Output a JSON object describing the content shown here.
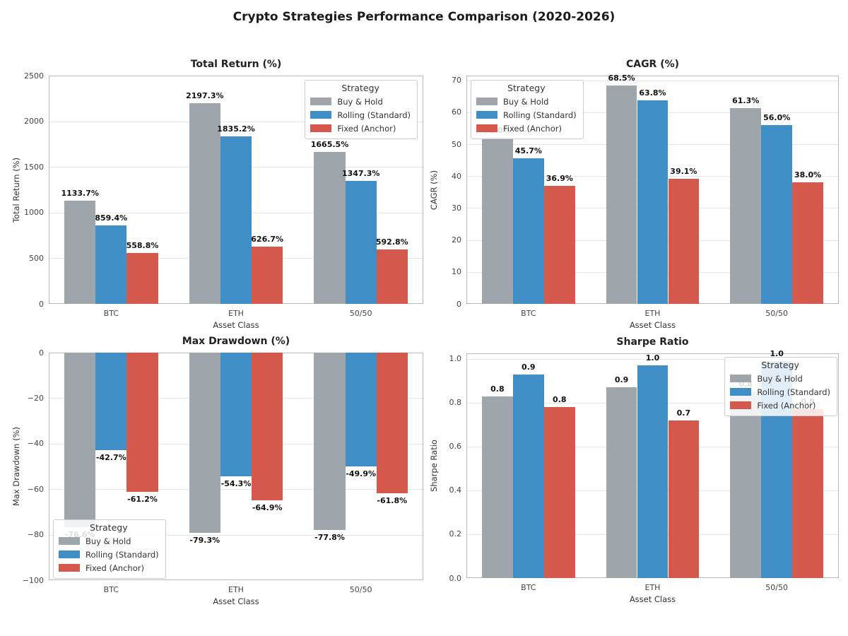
{
  "title": "Crypto Strategies Performance Comparison (2020-2026)",
  "legend": {
    "title": "Strategy",
    "entries": [
      {
        "label": "Buy & Hold",
        "color": "#9fa6ab"
      },
      {
        "label": "Rolling (Standard)",
        "color": "#3f8fc6"
      },
      {
        "label": "Fixed (Anchor)",
        "color": "#d5584c"
      }
    ]
  },
  "chart_data": [
    {
      "type": "bar",
      "title": "Total Return (%)",
      "xlabel": "Asset Class",
      "ylabel": "Total Return (%)",
      "categories": [
        "BTC",
        "ETH",
        "50/50"
      ],
      "series": [
        {
          "name": "Buy & Hold",
          "values": [
            1133.7,
            2197.3,
            1665.5
          ],
          "labels": [
            "1133.7%",
            "2197.3%",
            "1665.5%"
          ]
        },
        {
          "name": "Rolling (Standard)",
          "values": [
            859.4,
            1835.2,
            1347.3
          ],
          "labels": [
            "859.4%",
            "1835.2%",
            "1347.3%"
          ]
        },
        {
          "name": "Fixed (Anchor)",
          "values": [
            558.8,
            626.7,
            592.8
          ],
          "labels": [
            "558.8%",
            "626.7%",
            "592.8%"
          ]
        }
      ],
      "ylim": [
        0,
        2500
      ],
      "yticks": [
        0,
        500,
        1000,
        1500,
        2000,
        2500
      ],
      "ytick_labels": [
        "0",
        "500",
        "1000",
        "1500",
        "2000",
        "2500"
      ],
      "legend_pos": "upper-right",
      "grid": "horizontal"
    },
    {
      "type": "bar",
      "title": "CAGR (%)",
      "xlabel": "Asset Class",
      "ylabel": "CAGR (%)",
      "categories": [
        "BTC",
        "ETH",
        "50/50"
      ],
      "series": [
        {
          "name": "Buy & Hold",
          "values": [
            52.0,
            68.5,
            61.3
          ],
          "labels": [
            "52.0%",
            "68.5%",
            "61.3%"
          ]
        },
        {
          "name": "Rolling (Standard)",
          "values": [
            45.7,
            63.8,
            56.0
          ],
          "labels": [
            "45.7%",
            "63.8%",
            "56.0%"
          ]
        },
        {
          "name": "Fixed (Anchor)",
          "values": [
            36.9,
            39.1,
            38.0
          ],
          "labels": [
            "36.9%",
            "39.1%",
            "38.0%"
          ]
        }
      ],
      "ylim": [
        0,
        71.5
      ],
      "yticks": [
        0,
        10,
        20,
        30,
        40,
        50,
        60,
        70
      ],
      "ytick_labels": [
        "0",
        "10",
        "20",
        "30",
        "40",
        "50",
        "60",
        "70"
      ],
      "legend_pos": "upper-left",
      "grid": "horizontal"
    },
    {
      "type": "bar",
      "title": "Max Drawdown (%)",
      "xlabel": "Asset Class",
      "ylabel": "Max Drawdown (%)",
      "categories": [
        "BTC",
        "ETH",
        "50/50"
      ],
      "series": [
        {
          "name": "Buy & Hold",
          "values": [
            -76.6,
            -79.3,
            -77.8
          ],
          "labels": [
            "-76.6%",
            "-79.3%",
            "-77.8%"
          ]
        },
        {
          "name": "Rolling (Standard)",
          "values": [
            -42.7,
            -54.3,
            -49.9
          ],
          "labels": [
            "-42.7%",
            "-54.3%",
            "-49.9%"
          ]
        },
        {
          "name": "Fixed (Anchor)",
          "values": [
            -61.2,
            -64.9,
            -61.8
          ],
          "labels": [
            "-61.2%",
            "-64.9%",
            "-61.8%"
          ]
        }
      ],
      "ylim": [
        -100,
        0
      ],
      "yticks": [
        0,
        -20,
        -40,
        -60,
        -80,
        -100
      ],
      "ytick_labels": [
        "0",
        "−20",
        "−40",
        "−60",
        "−80",
        "−100"
      ],
      "legend_pos": "lower-left",
      "grid": "horizontal"
    },
    {
      "type": "bar",
      "title": "Sharpe Ratio",
      "xlabel": "Asset Class",
      "ylabel": "Sharpe Ratio",
      "categories": [
        "BTC",
        "ETH",
        "50/50"
      ],
      "series": [
        {
          "name": "Buy & Hold",
          "values": [
            0.83,
            0.87,
            0.85
          ],
          "labels": [
            "0.8",
            "0.9",
            "0.8"
          ]
        },
        {
          "name": "Rolling (Standard)",
          "values": [
            0.93,
            0.97,
            0.99
          ],
          "labels": [
            "0.9",
            "1.0",
            "1.0"
          ]
        },
        {
          "name": "Fixed (Anchor)",
          "values": [
            0.78,
            0.72,
            0.77
          ],
          "labels": [
            "0.8",
            "0.7",
            "0.8"
          ]
        }
      ],
      "ylim": [
        0,
        1.025
      ],
      "yticks": [
        0.0,
        0.2,
        0.4,
        0.6,
        0.8,
        1.0
      ],
      "ytick_labels": [
        "0.0",
        "0.2",
        "0.4",
        "0.6",
        "0.8",
        "1.0"
      ],
      "legend_pos": "upper-right",
      "grid": "horizontal"
    }
  ]
}
